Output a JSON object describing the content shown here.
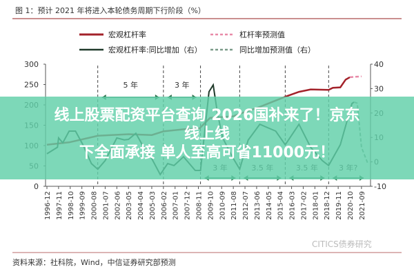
{
  "banner": {
    "line1": "线上股票配资平台查询 2026国补来了！京东线上线",
    "line2": "下全面承接  单人至高可省11000元！"
  },
  "source": "资料来源：社科院，Wind，中信证券研究部预测",
  "watermark": "CITICS债券研究",
  "colors": {
    "leverage": "#a3222a",
    "leverage_forecast": "#e88aa8",
    "growth": "#1f3a2a",
    "growth_forecast": "#7a9a88",
    "annotation": "#2c6e4a",
    "rule": "#b86a6a"
  },
  "chart_data": {
    "type": "line",
    "title": "图 1：预计 2021 年将进入本轮债务周期下行阶段（%）",
    "xlabel": "",
    "ylabel": "",
    "ylim": [
      0,
      300
    ],
    "y2lim": [
      -10,
      40
    ],
    "yticks": [
      "0",
      "50",
      "100",
      "150",
      "200",
      "250",
      "300"
    ],
    "y2ticks": [
      "-10",
      "0",
      "10",
      "20",
      "30",
      "40"
    ],
    "xticks": [
      "1996-12",
      "1997-11",
      "1998-10",
      "1999-09",
      "2000-08",
      "2001-07",
      "2002-06",
      "2003-05",
      "2004-04",
      "2005-03",
      "2006-02",
      "2007-01",
      "2007-12",
      "2008-11",
      "2009-10",
      "2010-09",
      "2011-08",
      "2012-07",
      "2013-06",
      "2014-05",
      "2015-04",
      "2016-03",
      "2017-02",
      "2018-01",
      "2018-12",
      "2019-11",
      "2020-10",
      "2021-09"
    ],
    "legend": "top",
    "series": [
      {
        "name": "宏观杠杆率",
        "axis": "left",
        "style": "solid",
        "x": [
          "1996-12",
          "1998-09",
          "2000-12",
          "2003-05",
          "2005-03",
          "2006-02",
          "2007-09",
          "2008-12",
          "2009-10",
          "2011-08",
          "2012-02",
          "2013-09",
          "2015-09",
          "2016-10",
          "2017-09",
          "2019-02",
          "2019-06",
          "2020-01",
          "2020-06",
          "2020-10"
        ],
        "values": [
          102,
          108,
          124,
          128,
          126,
          135,
          140,
          142,
          168,
          172,
          178,
          195,
          220,
          232,
          238,
          237,
          242,
          243,
          262,
          268
        ]
      },
      {
        "name": "杠杆率预测值",
        "axis": "left",
        "style": "dashed",
        "x": [
          "2020-10",
          "2021-03",
          "2021-09"
        ],
        "values": [
          268,
          269,
          270
        ]
      },
      {
        "name": "宏观杠杆率:同比增加（右）",
        "axis": "right",
        "style": "solid",
        "x": [
          "1996-12",
          "1997-10",
          "1997-11",
          "1998-03",
          "1998-09",
          "1999-03",
          "1999-10",
          "2000-06",
          "2000-12",
          "2001-07",
          "2002-06",
          "2003-01",
          "2003-05",
          "2003-12",
          "2004-06",
          "2005-03",
          "2005-11",
          "2006-06",
          "2006-12",
          "2007-09",
          "2008-08",
          "2009-01",
          "2009-09",
          "2010-01",
          "2010-05",
          "2010-10",
          "2011-07",
          "2012-02",
          "2012-10",
          "2013-09",
          "2014-12",
          "2015-09",
          "2016-10",
          "2017-09",
          "2018-08",
          "2019-02",
          "2020-01",
          "2020-12",
          "2021-02"
        ],
        "values": [
          3.3,
          6,
          9.8,
          7.8,
          12.6,
          12.6,
          7,
          -0.7,
          -3,
          0.5,
          9.8,
          9,
          9.2,
          11.7,
          7,
          1.3,
          -5.2,
          -0.7,
          -1.5,
          2.1,
          -3.5,
          -3.5,
          28.7,
          31.5,
          20,
          9.8,
          2.1,
          -3,
          8.9,
          15.4,
          12.6,
          7,
          15.4,
          6,
          0.5,
          -1.5,
          7,
          23.9,
          24.5
        ]
      },
      {
        "name": "同比增加预测值（右）",
        "axis": "right",
        "style": "dashed",
        "x": [
          "2021-02",
          "2021-05",
          "2021-09",
          "2022-03"
        ],
        "values": [
          24.5,
          24,
          6,
          -0.7
        ]
      }
    ],
    "cycle_lines": [
      "2000-12",
      "2006-02",
      "2009-01",
      "2012-02",
      "2015-09",
      "2019-02"
    ],
    "annotations": [
      {
        "text": "5 年",
        "from": "2000-12",
        "to": "2006-02",
        "level": "upper"
      },
      {
        "text": "3 年",
        "from": "2006-02",
        "to": "2009-01",
        "level": "upper"
      },
      {
        "text": "3 年",
        "from": "2009-01",
        "to": "2012-02",
        "level": "lower"
      },
      {
        "text": "3.5 年",
        "from": "2012-02",
        "to": "2015-09",
        "level": "lower"
      },
      {
        "text": "3.5 年",
        "from": "2015-09",
        "to": "2019-02",
        "level": "lower"
      },
      {
        "text": "3 年?",
        "from": "2019-02",
        "to": "2022-03",
        "level": "lower"
      }
    ]
  }
}
